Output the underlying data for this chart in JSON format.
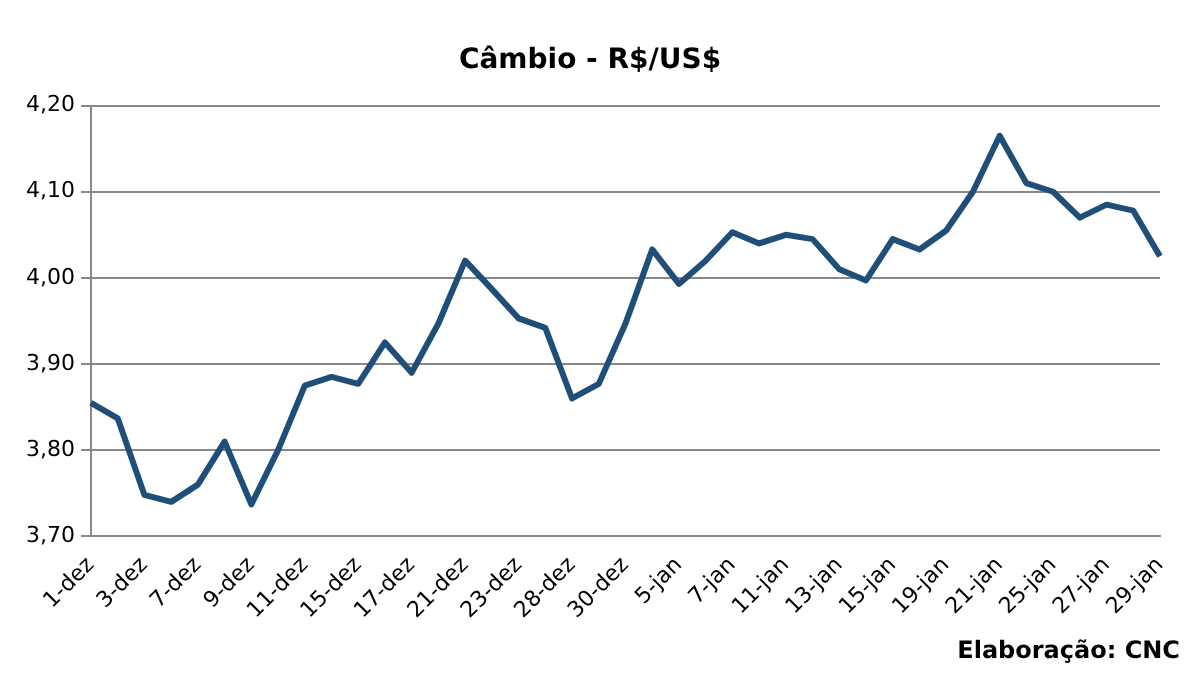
{
  "chart_data": {
    "type": "line",
    "title": "Câmbio - R$/US$",
    "categories": [
      "1-dez",
      null,
      "3-dez",
      null,
      "7-dez",
      null,
      "9-dez",
      null,
      "11-dez",
      null,
      "15-dez",
      null,
      "17-dez",
      null,
      "21-dez",
      null,
      "23-dez",
      null,
      "28-dez",
      null,
      "30-dez",
      null,
      "5-jan",
      null,
      "7-jan",
      null,
      "11-jan",
      null,
      "13-jan",
      null,
      "15-jan",
      null,
      "19-jan",
      null,
      "21-jan",
      null,
      "25-jan",
      null,
      "27-jan",
      null,
      "29-jan"
    ],
    "series": [
      {
        "color": "#1f4e79",
        "values": [
          3.855,
          3.837,
          3.748,
          3.74,
          3.76,
          3.81,
          3.737,
          3.8,
          3.875,
          3.885,
          3.877,
          3.925,
          3.89,
          3.947,
          4.02,
          3.987,
          3.953,
          3.942,
          3.86,
          3.877,
          3.947,
          4.033,
          3.993,
          4.02,
          4.053,
          4.04,
          4.05,
          4.045,
          4.01,
          3.997,
          4.045,
          4.033,
          4.055,
          4.1,
          4.165,
          4.11,
          4.1,
          4.07,
          4.085,
          4.078,
          4.025
        ]
      }
    ],
    "ylim": [
      3.7,
      4.2
    ],
    "yticks": [
      {
        "value": 3.7,
        "label": "3,70"
      },
      {
        "value": 3.8,
        "label": "3,80"
      },
      {
        "value": 3.9,
        "label": "3,90"
      },
      {
        "value": 4.0,
        "label": "4,00"
      },
      {
        "value": 4.1,
        "label": "4,10"
      },
      {
        "value": 4.2,
        "label": "4,20"
      }
    ],
    "grid": "y",
    "legend": false,
    "marker": "none",
    "line_style": "solid",
    "annotations": [
      "Elaboração:  CNC"
    ]
  }
}
